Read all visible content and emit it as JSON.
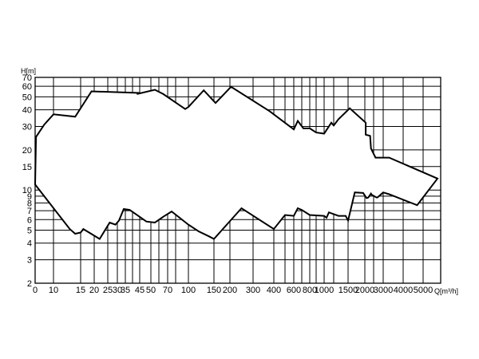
{
  "chart_data": {
    "type": "area",
    "title": "",
    "xlabel": "Q[m³/h]",
    "ylabel": "H[m]",
    "x_scale": "piecewise",
    "y_scale": "log",
    "grid": true,
    "legend": "none",
    "xlim": [
      0,
      5000
    ],
    "ylim": [
      2,
      70
    ],
    "x_ticks": [
      0,
      10,
      15,
      20,
      25,
      30,
      35,
      45,
      50,
      70,
      100,
      150,
      200,
      300,
      400,
      600,
      800,
      1000,
      1500,
      2000,
      3000,
      4000,
      5000
    ],
    "x_tick_labels": [
      "0",
      "10",
      "15",
      "20",
      "25",
      "30",
      "35",
      "45",
      "50",
      "70",
      "100",
      "150",
      "200",
      "300",
      "400",
      "600",
      "800",
      "1000",
      "1500",
      "2000",
      "3000",
      "4000",
      "5000"
    ],
    "x_grid": [
      0,
      10,
      15,
      20,
      25,
      30,
      35,
      40,
      45,
      50,
      60,
      70,
      80,
      100,
      150,
      200,
      300,
      400,
      500,
      600,
      700,
      800,
      900,
      1000,
      1200,
      1500,
      2000,
      2500,
      3000,
      4000,
      5000
    ],
    "y_ticks": [
      2,
      3,
      4,
      5,
      6,
      7,
      8,
      9,
      10,
      15,
      20,
      30,
      40,
      50,
      60,
      70
    ],
    "y_tick_labels": [
      "2",
      "3",
      "4",
      "5",
      "6",
      "7",
      "8",
      "9",
      "10",
      "15",
      "20",
      "30",
      "40",
      "50",
      "60",
      "70"
    ],
    "y_grid": [
      2,
      3,
      4,
      5,
      6,
      7,
      8,
      9,
      10,
      15,
      20,
      30,
      40,
      50,
      60,
      70
    ],
    "series": [
      {
        "color": "#000000",
        "x": [
          0,
          0.5,
          5,
          10,
          14,
          19,
          45,
          43,
          55,
          65,
          95,
          100,
          130,
          155,
          205,
          380,
          600,
          650,
          720,
          800,
          900,
          1000,
          1150,
          1200,
          1300,
          1550,
          2050,
          2050,
          2300,
          2350,
          2600,
          3300,
          6400,
          4700,
          3300,
          3000,
          2700,
          2650,
          2400,
          2350,
          2200,
          2100,
          1950,
          1700,
          1500,
          1450,
          1300,
          1100,
          1050,
          1000,
          800,
          700,
          650,
          600,
          500,
          400,
          250,
          150,
          140,
          120,
          100,
          75,
          65,
          55,
          48,
          44,
          38,
          34,
          31,
          29,
          26,
          22,
          16,
          15,
          14,
          13,
          0
        ],
        "y": [
          11,
          25,
          31,
          37,
          35.5,
          55,
          53.5,
          52.5,
          56.5,
          52.5,
          40.5,
          42,
          56,
          45,
          59.5,
          39,
          28.5,
          33,
          29,
          29,
          27,
          26.5,
          32,
          30.5,
          34,
          41,
          32,
          26,
          25.5,
          20.5,
          17.5,
          17.5,
          12.2,
          7.7,
          9.3,
          9.6,
          8.8,
          8.8,
          9.2,
          9.4,
          8.8,
          8.7,
          9.5,
          9.6,
          5.9,
          6.4,
          6.4,
          6.8,
          6.2,
          6.4,
          6.5,
          7.1,
          7.3,
          6.4,
          6.5,
          5.1,
          7.3,
          4.3,
          4.5,
          4.9,
          5.5,
          6.9,
          6.3,
          5.7,
          5.8,
          6.4,
          7.1,
          7.2,
          5.9,
          5.5,
          5.7,
          4.3,
          5.1,
          4.8,
          4.7,
          5.1,
          11
        ]
      }
    ]
  }
}
